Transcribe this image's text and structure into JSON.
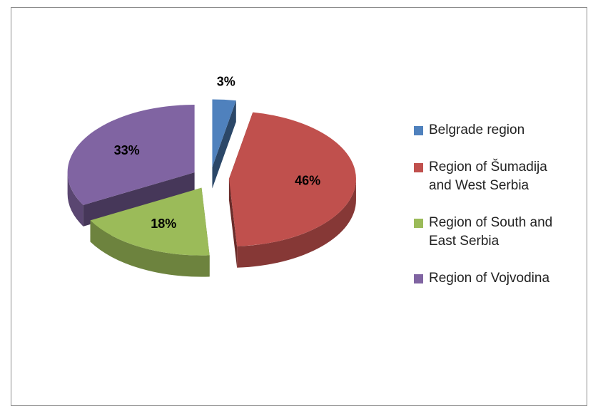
{
  "chart_data": {
    "type": "pie",
    "categories": [
      "Belgrade region",
      "Region of Šumadija and West Serbia",
      "Region of South and East Serbia",
      "Region of Vojvodina"
    ],
    "values": [
      3,
      46,
      18,
      33
    ],
    "value_labels": [
      "3%",
      "46%",
      "18%",
      "33%"
    ],
    "colors": [
      "#4f81bd",
      "#c0504d",
      "#9bbb59",
      "#8064a2"
    ],
    "legend": "right"
  }
}
